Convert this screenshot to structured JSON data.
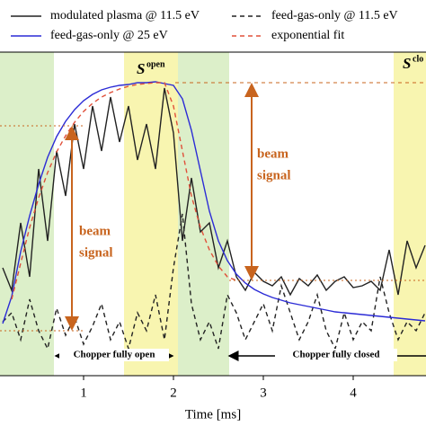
{
  "chart_data": {
    "type": "line",
    "x_label": "Time [ms]",
    "x": [
      0.1,
      0.2,
      0.3,
      0.4,
      0.5,
      0.6,
      0.7,
      0.8,
      0.9,
      1.0,
      1.1,
      1.2,
      1.3,
      1.4,
      1.5,
      1.6,
      1.7,
      1.8,
      1.9,
      2.0,
      2.1,
      2.2,
      2.3,
      2.4,
      2.5,
      2.6,
      2.7,
      2.8,
      2.9,
      3.0,
      3.1,
      3.2,
      3.3,
      3.4,
      3.5,
      3.6,
      3.7,
      3.8,
      3.9,
      4.0,
      4.1,
      4.2,
      4.3,
      4.4,
      4.5,
      4.6,
      4.7,
      4.8
    ],
    "series": [
      {
        "name": "modulated plasma @ 11.5 eV",
        "color": "#222222",
        "dashed": false,
        "values": [
          120,
          95,
          170,
          110,
          230,
          150,
          250,
          200,
          280,
          230,
          300,
          250,
          310,
          260,
          300,
          240,
          280,
          230,
          320,
          270,
          150,
          220,
          160,
          170,
          120,
          150,
          110,
          95,
          115,
          105,
          100,
          110,
          90,
          108,
          100,
          112,
          95,
          105,
          110,
          98,
          100,
          105,
          95,
          140,
          90,
          150,
          120,
          145
        ]
      },
      {
        "name": "feed-gas-only @ 11.5 eV",
        "color": "#222222",
        "dashed": true,
        "values": [
          60,
          70,
          40,
          85,
          50,
          30,
          75,
          45,
          65,
          35,
          55,
          80,
          40,
          60,
          30,
          70,
          50,
          90,
          40,
          120,
          180,
          80,
          40,
          60,
          30,
          90,
          70,
          40,
          60,
          80,
          50,
          100,
          70,
          40,
          60,
          90,
          50,
          30,
          70,
          40,
          60,
          50,
          110,
          70,
          40,
          60,
          50,
          70
        ]
      },
      {
        "name": "feed-gas-only @ 25 eV",
        "color": "#2b2bd6",
        "dashed": false,
        "values": [
          58,
          88,
          138,
          178,
          213,
          243,
          266,
          283,
          296,
          306,
          313,
          318,
          321,
          323,
          324,
          326,
          326,
          327,
          325,
          323,
          308,
          273,
          228,
          183,
          150,
          128,
          113,
          103,
          96,
          91,
          87,
          84,
          81,
          79,
          77,
          75,
          73,
          71,
          70,
          69,
          68,
          67,
          66,
          65,
          64,
          63,
          62,
          61
        ]
      },
      {
        "name": "exponential fit",
        "color": "#e0503a",
        "dashed": true,
        "values": [
          null,
          85,
          125,
          165,
          198,
          226,
          249,
          267,
          282,
          294,
          303,
          310,
          315,
          319,
          322,
          324,
          325,
          326,
          326,
          300,
          250,
          200,
          165,
          140,
          122,
          110,
          106,
          null,
          null,
          null,
          null,
          null,
          null,
          null,
          null,
          null,
          null,
          null,
          null,
          null,
          null,
          null,
          null,
          null,
          null,
          null,
          null,
          null
        ]
      }
    ],
    "xlim": [
      0.07,
      4.81
    ],
    "xticks": [
      1,
      2,
      3,
      4
    ],
    "ylim": [
      0,
      360
    ],
    "regions": [
      {
        "x": [
          0.07,
          0.67
        ],
        "color": "#dcefc9"
      },
      {
        "x": [
          1.45,
          2.05
        ],
        "color": "#f8f5b0"
      },
      {
        "x": [
          2.05,
          2.62
        ],
        "color": "#dcefc9"
      },
      {
        "x": [
          4.45,
          4.81
        ],
        "color": "#f8f5b0"
      }
    ],
    "annotations": {
      "s_open": {
        "main": "S",
        "sup": "open"
      },
      "s_closed": {
        "main": "S",
        "sup": "clo"
      },
      "beam_left": [
        "beam",
        "signal"
      ],
      "beam_right": [
        "beam",
        "signal"
      ],
      "chopper_open": "Chopper fully open",
      "chopper_closed": "Chopper fully closed"
    }
  }
}
